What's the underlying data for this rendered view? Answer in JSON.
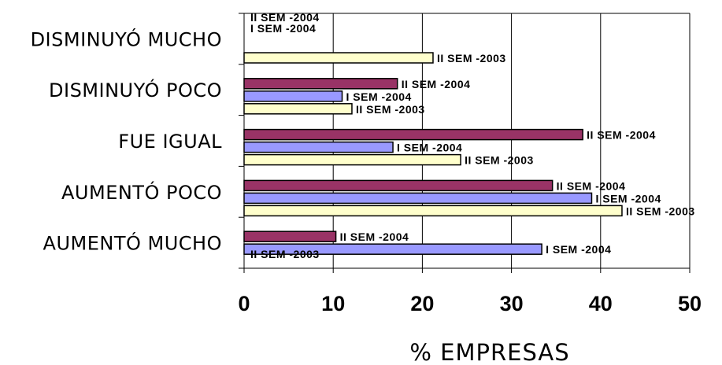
{
  "chart_data": {
    "type": "bar",
    "orientation": "horizontal",
    "categories": [
      "DISMINUYÓ MUCHO",
      "DISMINUYÓ POCO",
      "FUE IGUAL",
      "AUMENTÓ POCO",
      "AUMENTÓ MUCHO"
    ],
    "series": [
      {
        "name": "II SEM -2004",
        "color": "#993366",
        "values": [
          0,
          17.2,
          38,
          34.6,
          10.3
        ]
      },
      {
        "name": "I SEM -2004",
        "color": "#9999ff",
        "values": [
          0,
          11,
          16.7,
          39,
          33.4
        ]
      },
      {
        "name": "II SEM -2003",
        "color": "#ffffcc",
        "values": [
          21.2,
          12.1,
          24.3,
          42.4,
          0
        ]
      }
    ],
    "xlim": [
      0,
      50
    ],
    "xticks": [
      "0",
      "10",
      "20",
      "30",
      "40",
      "50"
    ],
    "xlabel": "% EMPRESAS",
    "grid": true,
    "colors": {
      "grid": "#000000",
      "text": "#000000",
      "background": "#ffffff"
    }
  }
}
